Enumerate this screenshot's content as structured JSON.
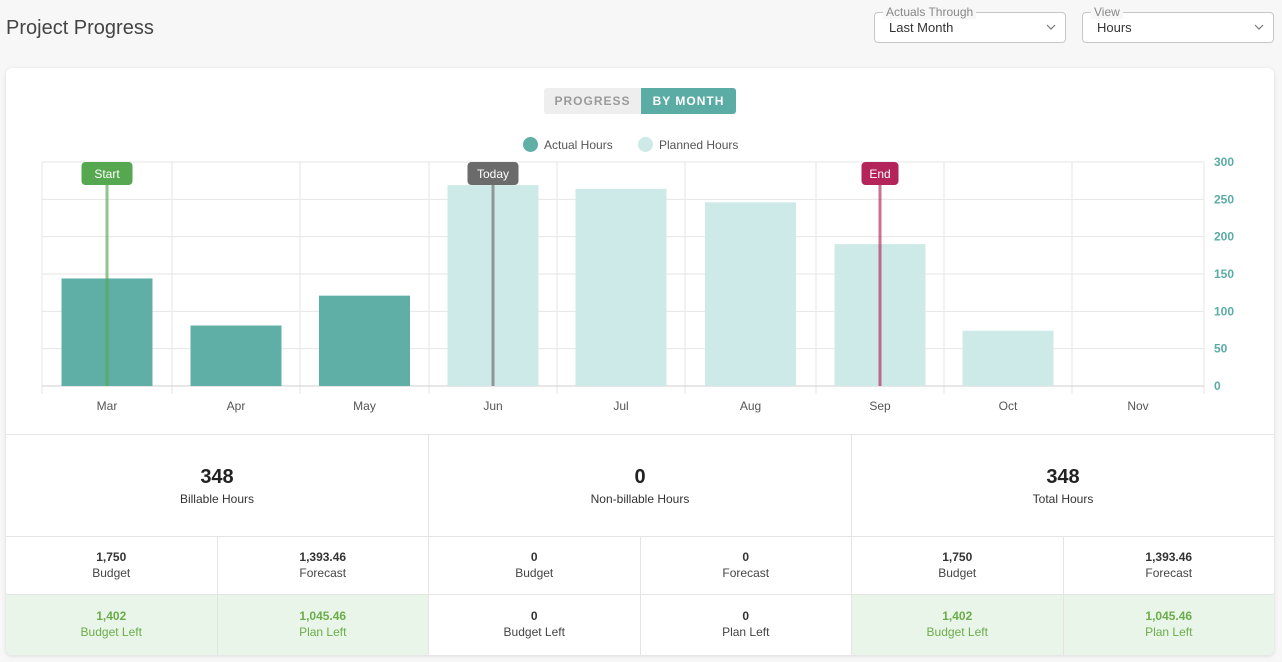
{
  "header": {
    "title": "Project Progress",
    "actuals_through": {
      "legend": "Actuals Through",
      "value": "Last Month"
    },
    "view": {
      "legend": "View",
      "value": "Hours"
    }
  },
  "toggle": {
    "progress_label": "PROGRESS",
    "by_month_label": "BY MONTH",
    "active": "BY MONTH"
  },
  "legend": {
    "actual_label": "Actual Hours",
    "planned_label": "Planned Hours"
  },
  "colors": {
    "actual": "#60afa7",
    "planned": "#cdeae8",
    "accent": "#5aaca4",
    "start_marker": "#55a84f",
    "today_marker": "#6b6b6b",
    "end_marker": "#b4245a",
    "budget_left_green": "#6aad4a"
  },
  "chart_data": {
    "type": "bar",
    "categories": [
      "Mar",
      "Apr",
      "May",
      "Jun",
      "Jul",
      "Aug",
      "Sep",
      "Oct",
      "Nov"
    ],
    "series": [
      {
        "name": "Actual Hours",
        "values": [
          144,
          81,
          121,
          null,
          null,
          null,
          null,
          null,
          null
        ]
      },
      {
        "name": "Planned Hours",
        "values": [
          null,
          null,
          null,
          269,
          264,
          246,
          190,
          74,
          0
        ]
      }
    ],
    "y_ticks": [
      0,
      50,
      100,
      150,
      200,
      250,
      300
    ],
    "ylim": [
      0,
      300
    ],
    "y_axis_side": "right",
    "grid": true,
    "legend_position": "top",
    "markers": [
      {
        "label": "Start",
        "category": "Mar",
        "color": "#55a84f"
      },
      {
        "label": "Today",
        "category": "Jun",
        "color": "#6b6b6b"
      },
      {
        "label": "End",
        "category": "Sep",
        "color": "#b4245a"
      }
    ]
  },
  "totals": [
    {
      "value": "348",
      "label": "Billable Hours"
    },
    {
      "value": "0",
      "label": "Non-billable Hours"
    },
    {
      "value": "348",
      "label": "Total Hours"
    }
  ],
  "budget_row": [
    {
      "value": "1,750",
      "label": "Budget"
    },
    {
      "value": "1,393.46",
      "label": "Forecast"
    },
    {
      "value": "0",
      "label": "Budget"
    },
    {
      "value": "0",
      "label": "Forecast"
    },
    {
      "value": "1,750",
      "label": "Budget"
    },
    {
      "value": "1,393.46",
      "label": "Forecast"
    }
  ],
  "left_row": [
    {
      "value": "1,402",
      "label": "Budget Left",
      "highlight": true
    },
    {
      "value": "1,045.46",
      "label": "Plan Left",
      "highlight": true
    },
    {
      "value": "0",
      "label": "Budget Left",
      "highlight": false
    },
    {
      "value": "0",
      "label": "Plan Left",
      "highlight": false
    },
    {
      "value": "1,402",
      "label": "Budget Left",
      "highlight": true
    },
    {
      "value": "1,045.46",
      "label": "Plan Left",
      "highlight": true
    }
  ]
}
